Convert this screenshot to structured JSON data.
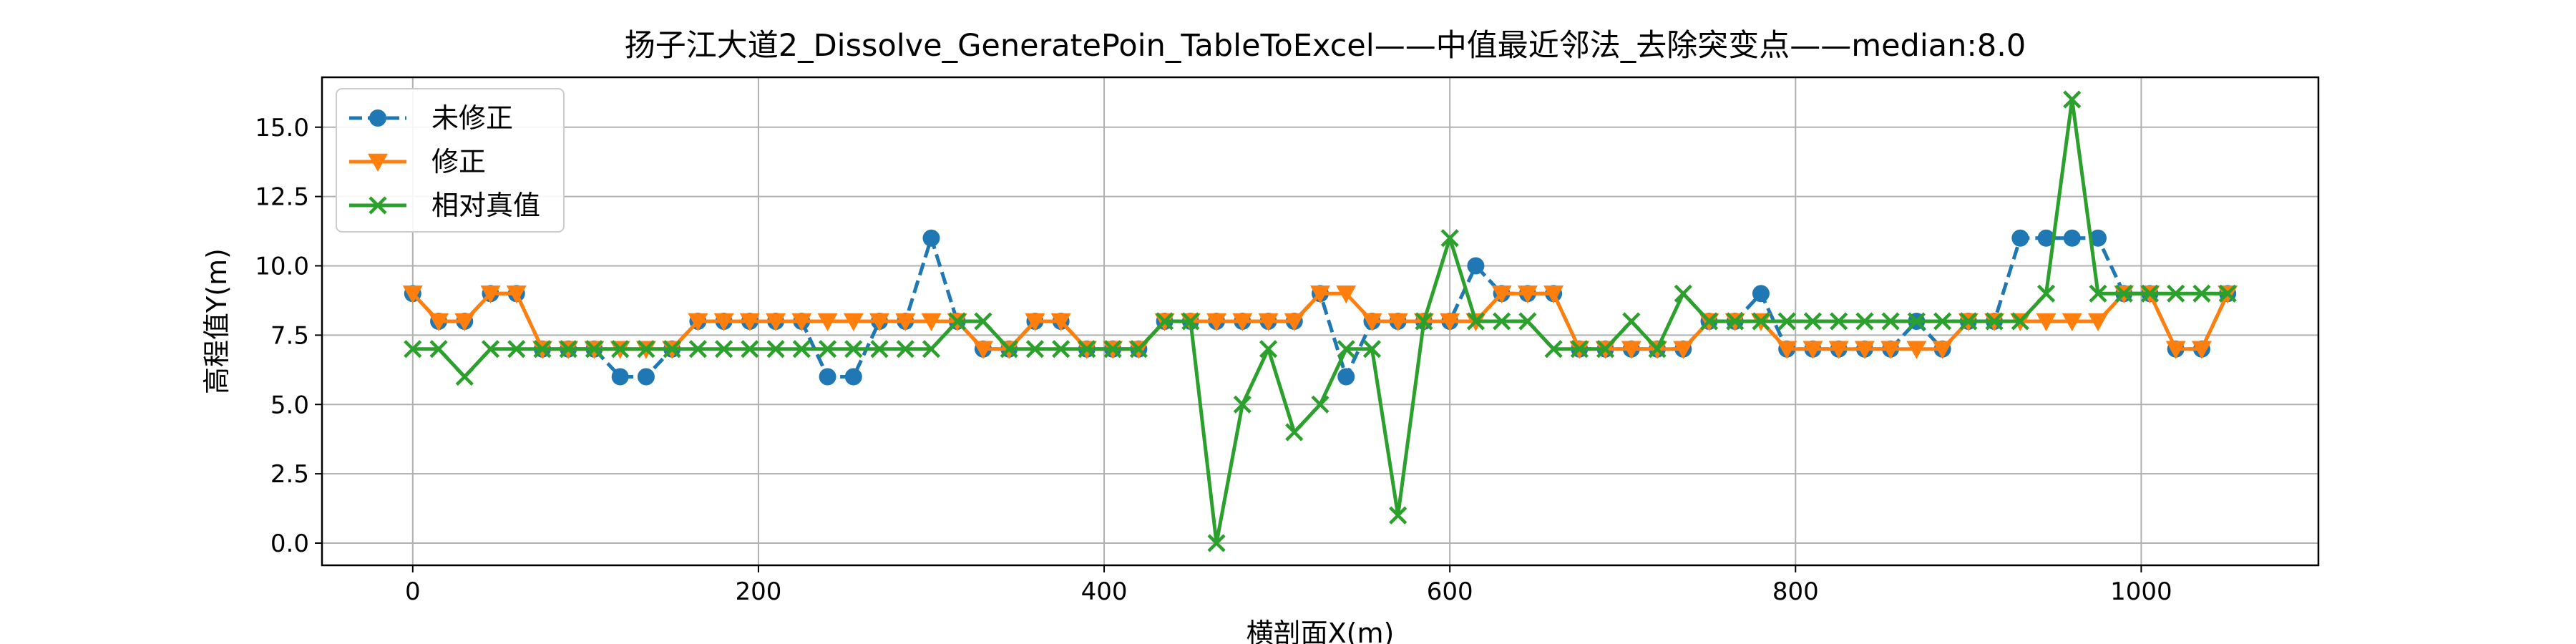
{
  "chart_data": {
    "type": "line",
    "title": "扬子江大道2_Dissolve_GeneratePoin_TableToExcel——中值最近邻法_去除突变点——median:8.0",
    "xlabel": "横剖面X(m)",
    "ylabel": "高程值Y(m)",
    "xlim": [
      -52.5,
      1102.5
    ],
    "ylim": [
      -0.8,
      16.8
    ],
    "xticks": [
      0,
      200,
      400,
      600,
      800,
      1000
    ],
    "yticks": [
      0.0,
      2.5,
      5.0,
      7.5,
      10.0,
      12.5,
      15.0
    ],
    "xtick_labels": [
      "0",
      "200",
      "400",
      "600",
      "800",
      "1000"
    ],
    "ytick_labels": [
      "0.0",
      "2.5",
      "5.0",
      "7.5",
      "10.0",
      "12.5",
      "15.0"
    ],
    "grid": true,
    "legend_position": "upper-left",
    "x": [
      0,
      15,
      30,
      45,
      60,
      75,
      90,
      105,
      120,
      135,
      150,
      165,
      180,
      195,
      210,
      225,
      240,
      255,
      270,
      285,
      300,
      315,
      330,
      345,
      360,
      375,
      390,
      405,
      420,
      435,
      450,
      465,
      480,
      495,
      510,
      525,
      540,
      555,
      570,
      585,
      600,
      615,
      630,
      645,
      660,
      675,
      690,
      705,
      720,
      735,
      750,
      765,
      780,
      795,
      810,
      825,
      840,
      855,
      870,
      885,
      900,
      915,
      930,
      945,
      960,
      975,
      990,
      1005,
      1020,
      1035,
      1050
    ],
    "series": [
      {
        "name": "未修正",
        "color": "#1f77b4",
        "linestyle": "dashed",
        "marker": "circle",
        "values": [
          9,
          8,
          8,
          9,
          9,
          7,
          7,
          7,
          6,
          6,
          7,
          8,
          8,
          8,
          8,
          8,
          6,
          6,
          8,
          8,
          11,
          8,
          7,
          7,
          8,
          8,
          7,
          7,
          7,
          8,
          8,
          8,
          8,
          8,
          8,
          9,
          6,
          8,
          8,
          8,
          8,
          10,
          9,
          9,
          9,
          7,
          7,
          7,
          7,
          7,
          8,
          8,
          9,
          7,
          7,
          7,
          7,
          7,
          8,
          7,
          8,
          8,
          11,
          11,
          11,
          11,
          9,
          9,
          7,
          7,
          9
        ]
      },
      {
        "name": "修正",
        "color": "#ff7f0e",
        "linestyle": "solid",
        "marker": "triangle-down",
        "values": [
          9,
          8,
          8,
          9,
          9,
          7,
          7,
          7,
          7,
          7,
          7,
          8,
          8,
          8,
          8,
          8,
          8,
          8,
          8,
          8,
          8,
          8,
          7,
          7,
          8,
          8,
          7,
          7,
          7,
          8,
          8,
          8,
          8,
          8,
          8,
          9,
          9,
          8,
          8,
          8,
          8,
          8,
          9,
          9,
          9,
          7,
          7,
          7,
          7,
          7,
          8,
          8,
          8,
          7,
          7,
          7,
          7,
          7,
          7,
          7,
          8,
          8,
          8,
          8,
          8,
          8,
          9,
          9,
          7,
          7,
          9
        ]
      },
      {
        "name": "相对真值",
        "color": "#2ca02c",
        "linestyle": "solid",
        "marker": "x",
        "values": [
          7,
          7,
          6,
          7,
          7,
          7,
          7,
          7,
          7,
          7,
          7,
          7,
          7,
          7,
          7,
          7,
          7,
          7,
          7,
          7,
          7,
          8,
          8,
          7,
          7,
          7,
          7,
          7,
          7,
          8,
          8,
          0,
          5,
          7,
          4,
          5,
          7,
          7,
          1,
          8,
          11,
          8,
          8,
          8,
          7,
          7,
          7,
          8,
          7,
          9,
          8,
          8,
          8,
          8,
          8,
          8,
          8,
          8,
          8,
          8,
          8,
          8,
          8,
          9,
          16,
          9,
          9,
          9,
          9,
          9,
          9
        ]
      }
    ]
  }
}
